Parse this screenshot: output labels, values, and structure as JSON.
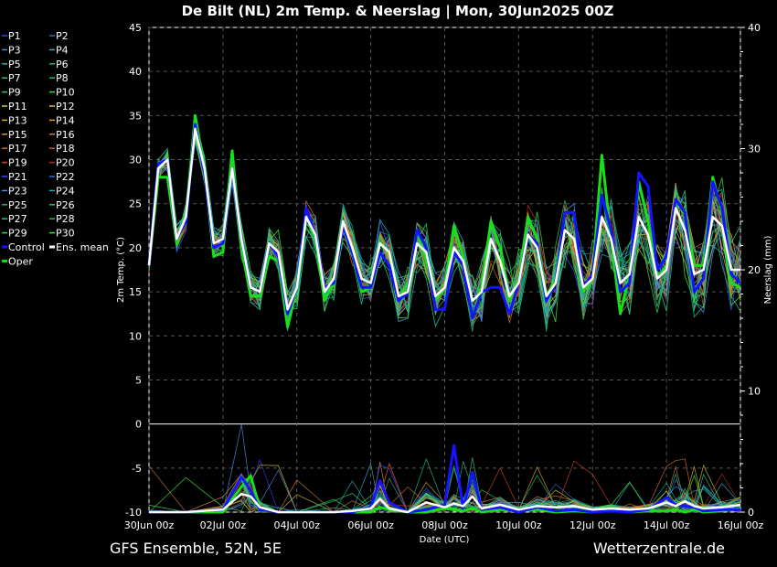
{
  "header": {
    "title": "De Bilt  (NL)  2m Temp. & Neerslag | Mon, 30Jun2025 00Z"
  },
  "footer": {
    "left": "GFS Ensemble, 52N, 5E",
    "right": "Wetterzentrale.de"
  },
  "colors": {
    "background": "#000000",
    "grid": "#555555",
    "text": "#ffffff"
  },
  "chart_data": {
    "type": "line",
    "xlabel": "Date (UTC)",
    "ylabel_left": "2m Temp. (°C)",
    "ylabel_right": "Neerslag (mm)",
    "x_ticks": [
      "30Jun 00z",
      "02Jul 00z",
      "04Jul 00z",
      "06Jul 00z",
      "08Jul 00z",
      "10Jul 00z",
      "12Jul 00z",
      "14Jul 00z",
      "16Jul 00z"
    ],
    "x_range_days": [
      0,
      16
    ],
    "y_left_ticks": [
      45,
      40,
      35,
      30,
      25,
      20,
      15,
      10,
      5,
      0,
      -5,
      -10
    ],
    "ylim_left": [
      -10,
      45
    ],
    "y_right_ticks": [
      40,
      30,
      20,
      10,
      0
    ],
    "ylim_right": [
      0,
      40
    ],
    "grid": true,
    "legend_placement": "left",
    "legend": [
      {
        "name": "P1",
        "color": "#3a3aff"
      },
      {
        "name": "P2",
        "color": "#2e6bd8"
      },
      {
        "name": "P3",
        "color": "#3f8fe0"
      },
      {
        "name": "P4",
        "color": "#3aa5c8"
      },
      {
        "name": "P5",
        "color": "#20b4b4"
      },
      {
        "name": "P6",
        "color": "#25b890"
      },
      {
        "name": "P7",
        "color": "#2bbf80"
      },
      {
        "name": "P8",
        "color": "#2bb86a"
      },
      {
        "name": "P9",
        "color": "#33cc55"
      },
      {
        "name": "P10",
        "color": "#3fd93f"
      },
      {
        "name": "P11",
        "color": "#c8c840"
      },
      {
        "name": "P12",
        "color": "#d8c040"
      },
      {
        "name": "P13",
        "color": "#d4b030"
      },
      {
        "name": "P14",
        "color": "#e0a030"
      },
      {
        "name": "P15",
        "color": "#d89040"
      },
      {
        "name": "P16",
        "color": "#c87838"
      },
      {
        "name": "P17",
        "color": "#d86a2a"
      },
      {
        "name": "P18",
        "color": "#c85a2a"
      },
      {
        "name": "P19",
        "color": "#d04020"
      },
      {
        "name": "P20",
        "color": "#b02a1a"
      },
      {
        "name": "P21",
        "color": "#3a4aff"
      },
      {
        "name": "P22",
        "color": "#2a70d0"
      },
      {
        "name": "P23",
        "color": "#4a90e8"
      },
      {
        "name": "P24",
        "color": "#30a0c0"
      },
      {
        "name": "P25",
        "color": "#18b0a8"
      },
      {
        "name": "P26",
        "color": "#20c0a0"
      },
      {
        "name": "P27",
        "color": "#28c880"
      },
      {
        "name": "P28",
        "color": "#28b860"
      },
      {
        "name": "P29",
        "color": "#30d050"
      },
      {
        "name": "P30",
        "color": "#40e040"
      },
      {
        "name": "Control",
        "color": "#1414ff"
      },
      {
        "name": "Ens. mean",
        "color": "#ffffff"
      },
      {
        "name": "Oper",
        "color": "#18e018"
      }
    ],
    "series_temperature": [
      {
        "name": "Ens. mean",
        "x_days": [
          0,
          0.25,
          0.5,
          0.75,
          1,
          1.25,
          1.5,
          1.75,
          2,
          2.25,
          2.5,
          2.75,
          3,
          3.25,
          3.5,
          3.75,
          4,
          4.25,
          4.5,
          4.75,
          5,
          5.25,
          5.5,
          5.75,
          6,
          6.25,
          6.5,
          6.75,
          7,
          7.25,
          7.5,
          7.75,
          8,
          8.25,
          8.5,
          8.75,
          9,
          9.25,
          9.5,
          9.75,
          10,
          10.25,
          10.5,
          10.75,
          11,
          11.25,
          11.5,
          11.75,
          12,
          12.25,
          12.5,
          12.75,
          13,
          13.25,
          13.5,
          13.75,
          14,
          14.25,
          14.5,
          14.75,
          15,
          15.25,
          15.5,
          15.75,
          16
        ],
        "values": [
          18,
          29,
          30,
          21,
          23.5,
          33.5,
          29,
          20.5,
          21,
          29,
          21,
          15.5,
          15,
          20.5,
          19.5,
          13,
          15.5,
          23.5,
          21.5,
          15,
          16.5,
          23,
          20,
          16.5,
          16,
          20.5,
          19.5,
          14.5,
          15,
          20.5,
          19.5,
          14.5,
          15.5,
          20,
          18.5,
          14,
          15,
          21,
          18.5,
          14.5,
          16,
          21.5,
          20,
          14.5,
          16,
          22,
          21,
          15.5,
          16.5,
          23.5,
          21,
          16,
          17,
          23.5,
          21.5,
          16.5,
          17.5,
          24.5,
          22,
          17,
          17.5,
          23.5,
          22.5,
          17.5,
          17.5
        ]
      },
      {
        "name": "Control",
        "x_days": [
          0,
          0.25,
          0.5,
          0.75,
          1,
          1.25,
          1.5,
          1.75,
          2,
          2.25,
          2.5,
          2.75,
          3,
          3.25,
          3.5,
          3.75,
          4,
          4.25,
          4.5,
          4.75,
          5,
          5.25,
          5.5,
          5.75,
          6,
          6.25,
          6.5,
          6.75,
          7,
          7.25,
          7.5,
          7.75,
          8,
          8.25,
          8.5,
          8.75,
          9,
          9.25,
          9.5,
          9.75,
          10,
          10.25,
          10.5,
          10.75,
          11,
          11.25,
          11.5,
          11.75,
          12,
          12.25,
          12.5,
          12.75,
          13,
          13.25,
          13.5,
          13.75,
          14,
          14.25,
          14.5,
          14.75,
          15,
          15.25,
          15.5,
          15.75,
          16
        ],
        "values": [
          18,
          29.5,
          30,
          21,
          23,
          34,
          28.5,
          20,
          20.5,
          29,
          21,
          15.5,
          15,
          20.5,
          19,
          12.5,
          15.5,
          24.5,
          21.5,
          15.5,
          16,
          22.5,
          19.5,
          15.5,
          15.5,
          19.5,
          18,
          14,
          15,
          22,
          20,
          13,
          13,
          19.5,
          18,
          12,
          15,
          15.5,
          15.5,
          12.5,
          16,
          21.5,
          20.5,
          14,
          16,
          24,
          24,
          15.5,
          17,
          26,
          22,
          15,
          16,
          28.5,
          27,
          17.5,
          19,
          25.5,
          24,
          15,
          16.5,
          27.5,
          24.5,
          17,
          16
        ]
      },
      {
        "name": "Oper",
        "x_days": [
          0,
          0.25,
          0.5,
          0.75,
          1,
          1.25,
          1.5,
          1.75,
          2,
          2.25,
          2.5,
          2.75,
          3,
          3.25,
          3.5,
          3.75,
          4,
          4.25,
          4.5,
          4.75,
          5,
          5.25,
          5.5,
          5.75,
          6,
          6.25,
          6.5,
          6.75,
          7,
          7.25,
          7.5,
          7.75,
          8,
          8.25,
          8.5,
          8.75,
          9,
          9.25,
          9.5,
          9.75,
          10,
          10.25,
          10.5,
          10.75,
          11,
          11.25,
          11.5,
          11.75,
          12,
          12.25,
          12.5,
          12.75,
          13,
          13.25,
          13.5,
          13.75,
          14,
          14.25,
          14.5,
          14.75,
          15,
          15.25,
          15.5,
          15.75,
          16
        ],
        "values": [
          18,
          28,
          28,
          20.5,
          23.5,
          35,
          29,
          19,
          19.5,
          31,
          20,
          14.5,
          14.5,
          19,
          18.5,
          11,
          15.5,
          24,
          21,
          14,
          16,
          22.5,
          20,
          15,
          15.5,
          20.5,
          19.5,
          14,
          16,
          22,
          18.5,
          14,
          15.5,
          22.5,
          19,
          12,
          15.5,
          23,
          20,
          14,
          16.5,
          23.5,
          21,
          14.5,
          16.5,
          24,
          24,
          15,
          17,
          30.5,
          21,
          12.5,
          17,
          27.5,
          23,
          16.5,
          18,
          25.5,
          24,
          18,
          18,
          28,
          24,
          16,
          15.5
        ]
      }
    ],
    "series_precip_mm": [
      {
        "name": "Ens. mean",
        "x_days": [
          0,
          1,
          2,
          2.5,
          2.75,
          3,
          3.5,
          4,
          5,
          5.5,
          6,
          6.25,
          6.5,
          7,
          7.5,
          8,
          8.25,
          8.5,
          8.75,
          9,
          9.5,
          10,
          10.5,
          11,
          11.5,
          12,
          12.5,
          13,
          13.5,
          14,
          14.25,
          14.5,
          14.75,
          15,
          15.5,
          16
        ],
        "values": [
          0,
          0,
          0.2,
          1.5,
          1.3,
          0.4,
          0,
          0,
          0,
          0.1,
          0.3,
          1.1,
          0.3,
          0,
          0.8,
          0.4,
          0.7,
          0.5,
          1.3,
          0.3,
          0.6,
          0.2,
          0.5,
          0.4,
          0.5,
          0.2,
          0.3,
          0.2,
          0.3,
          0.8,
          0.5,
          0.9,
          0.5,
          0.3,
          0.4,
          0.6
        ]
      },
      {
        "name": "Control",
        "x_days": [
          0,
          1,
          2,
          2.5,
          2.75,
          3,
          3.5,
          4,
          5,
          5.5,
          6,
          6.25,
          6.5,
          7,
          7.5,
          8,
          8.25,
          8.5,
          8.75,
          9,
          9.5,
          10,
          10.5,
          11,
          11.5,
          12,
          12.5,
          13,
          13.5,
          14,
          14.25,
          14.5,
          14.75,
          15,
          15.5,
          16
        ],
        "values": [
          0,
          0,
          0.2,
          2.9,
          1.8,
          0.2,
          0,
          0,
          0,
          0,
          0.4,
          2.6,
          0.8,
          0,
          0.2,
          0.6,
          5.5,
          0.3,
          3.3,
          0.2,
          0.4,
          0,
          0.4,
          0.1,
          0.2,
          0,
          0.1,
          0,
          0.2,
          1.2,
          0.6,
          0.5,
          0.4,
          0.1,
          0.2,
          0.2
        ]
      },
      {
        "name": "Oper",
        "x_days": [
          0,
          1,
          2,
          2.5,
          2.75,
          3,
          3.5,
          4,
          5,
          5.5,
          6,
          6.25,
          6.5,
          7,
          7.5,
          8,
          8.25,
          8.5,
          8.75,
          9,
          9.5,
          10,
          10.5,
          11,
          11.5,
          12,
          12.5,
          13,
          13.5,
          14,
          14.25,
          14.5,
          14.75,
          15,
          15.5,
          16
        ],
        "values": [
          0,
          0,
          0,
          2.1,
          3.0,
          0.3,
          0,
          0,
          0,
          0,
          0,
          0.4,
          0.2,
          0,
          0,
          0.3,
          0.2,
          0.1,
          0.3,
          0,
          0.2,
          0.1,
          0.2,
          0,
          0.1,
          0,
          0.2,
          0,
          0.1,
          0.1,
          0.2,
          0,
          0.2,
          0,
          0.1,
          0.3
        ]
      }
    ]
  }
}
